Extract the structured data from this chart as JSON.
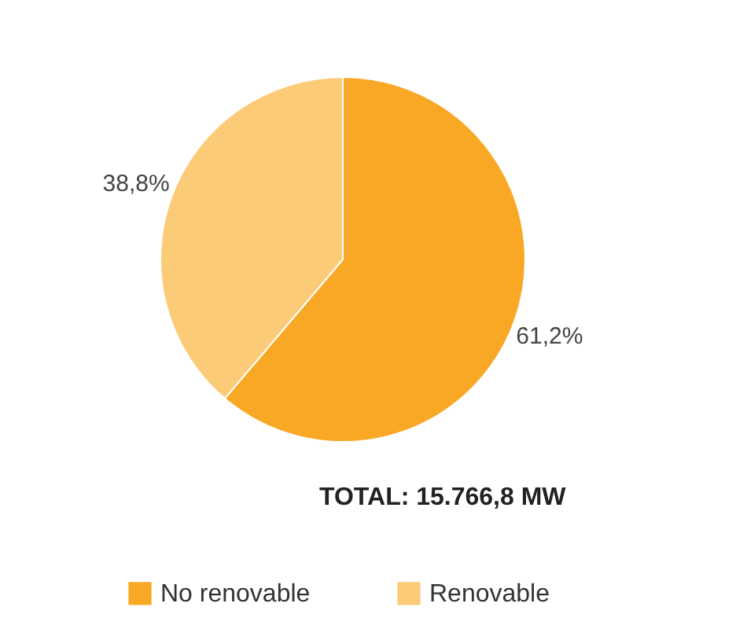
{
  "chart_data": {
    "type": "pie",
    "categories": [
      "No renovable",
      "Renovable"
    ],
    "values": [
      61.2,
      38.8
    ],
    "colors": [
      "#f9a825",
      "#fccb77"
    ],
    "value_labels": [
      "61,2%",
      "38,8%"
    ],
    "annotations": [
      "TOTAL: 15.766,8 MW"
    ],
    "legend": "bottom"
  }
}
